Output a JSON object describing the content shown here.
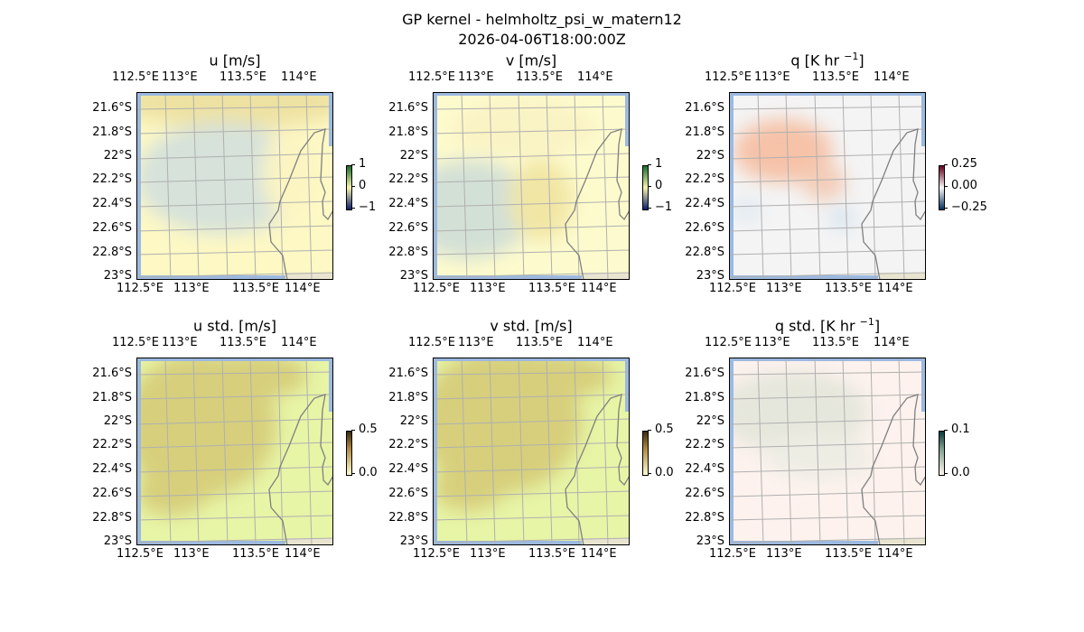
{
  "figure": {
    "title": "GP kernel - helmholtz_psi_w_matern12",
    "subtitle": "2026-04-06T18:00:00Z"
  },
  "chart_data": [
    {
      "type": "heatmap",
      "title": "u [m/s]",
      "title_sup": "",
      "title_end": "",
      "colorbar_ticks": [
        "1",
        "0",
        "−1"
      ],
      "colormap": "diverging green-yellow-blue",
      "lon_ticks": [
        "112.5°E",
        "113°E",
        "113.5°E",
        "114°E"
      ],
      "lat_ticks": [
        "21.6°S",
        "21.8°S",
        "22°S",
        "22.2°S",
        "22.4°S",
        "22.6°S",
        "22.8°S",
        "23°S"
      ]
    },
    {
      "type": "heatmap",
      "title": "v [m/s]",
      "title_sup": "",
      "title_end": "",
      "colorbar_ticks": [
        "1",
        "0",
        "−1"
      ],
      "colormap": "diverging green-yellow-blue",
      "lon_ticks": [
        "112.5°E",
        "113°E",
        "113.5°E",
        "114°E"
      ],
      "lat_ticks": [
        "21.6°S",
        "21.8°S",
        "22°S",
        "22.2°S",
        "22.4°S",
        "22.6°S",
        "22.8°S",
        "23°S"
      ]
    },
    {
      "type": "heatmap",
      "title": "q [K hr ",
      "title_sup": "−1",
      "title_end": "]",
      "colorbar_ticks": [
        "0.25",
        "0.00",
        "−0.25"
      ],
      "colormap": "RdBu_r",
      "lon_ticks": [
        "112.5°E",
        "113°E",
        "113.5°E",
        "114°E"
      ],
      "lat_ticks": [
        "21.6°S",
        "21.8°S",
        "22°S",
        "22.2°S",
        "22.4°S",
        "22.6°S",
        "22.8°S",
        "23°S"
      ]
    },
    {
      "type": "heatmap",
      "title": "u std. [m/s]",
      "title_sup": "",
      "title_end": "",
      "colorbar_ticks": [
        "0.5",
        "0.0"
      ],
      "colormap": "sequential",
      "lon_ticks": [
        "112.5°E",
        "113°E",
        "113.5°E",
        "114°E"
      ],
      "lat_ticks": [
        "21.6°S",
        "21.8°S",
        "22°S",
        "22.2°S",
        "22.4°S",
        "22.6°S",
        "22.8°S",
        "23°S"
      ]
    },
    {
      "type": "heatmap",
      "title": "v std. [m/s]",
      "title_sup": "",
      "title_end": "",
      "colorbar_ticks": [
        "0.5",
        "0.0"
      ],
      "colormap": "sequential",
      "lon_ticks": [
        "112.5°E",
        "113°E",
        "113.5°E",
        "114°E"
      ],
      "lat_ticks": [
        "21.6°S",
        "21.8°S",
        "22°S",
        "22.2°S",
        "22.4°S",
        "22.6°S",
        "22.8°S",
        "23°S"
      ]
    },
    {
      "type": "heatmap",
      "title": "q std. [K hr ",
      "title_sup": "−1",
      "title_end": "]",
      "colorbar_ticks": [
        "0.1",
        "0.0"
      ],
      "colormap": "sequential",
      "lon_ticks": [
        "112.5°E",
        "113°E",
        "113.5°E",
        "114°E"
      ],
      "lat_ticks": [
        "21.6°S",
        "21.8°S",
        "22°S",
        "22.2°S",
        "22.4°S",
        "22.6°S",
        "22.8°S",
        "23°S"
      ]
    }
  ],
  "colors": {
    "water": "#9cb9e0",
    "coastline": "#808080",
    "gridline": "#b0b0b0"
  }
}
